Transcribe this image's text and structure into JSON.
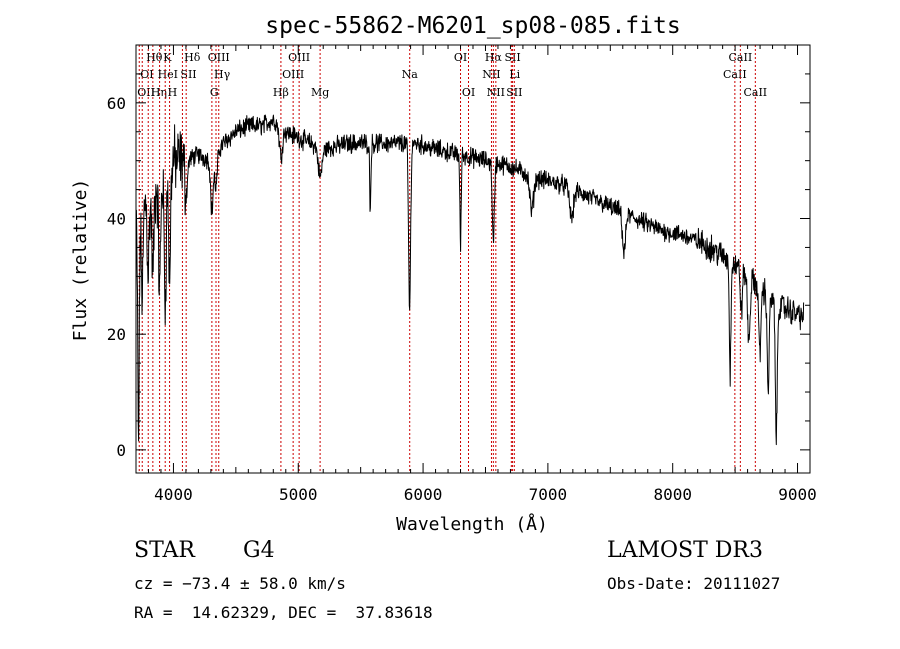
{
  "chart_data": {
    "type": "line",
    "title": "spec-55862-M6201_sp08-085.fits",
    "xlabel": "Wavelength (Å)",
    "ylabel": "Flux (relative)",
    "xlim": [
      3700,
      9100
    ],
    "ylim": [
      -4,
      70
    ],
    "xticks": [
      4000,
      5000,
      6000,
      7000,
      8000,
      9000
    ],
    "yticks": [
      0,
      20,
      40,
      60
    ],
    "line_color": "#000000",
    "marker_color": "#cc0000",
    "continuum": [
      {
        "x": 3700,
        "y": 38
      },
      {
        "x": 3760,
        "y": 43
      },
      {
        "x": 3830,
        "y": 44
      },
      {
        "x": 3900,
        "y": 46
      },
      {
        "x": 3980,
        "y": 50
      },
      {
        "x": 4100,
        "y": 50
      },
      {
        "x": 4200,
        "y": 51
      },
      {
        "x": 4300,
        "y": 50
      },
      {
        "x": 4400,
        "y": 53
      },
      {
        "x": 4500,
        "y": 55
      },
      {
        "x": 4600,
        "y": 56
      },
      {
        "x": 4700,
        "y": 56
      },
      {
        "x": 4800,
        "y": 57
      },
      {
        "x": 4900,
        "y": 55
      },
      {
        "x": 5000,
        "y": 54
      },
      {
        "x": 5100,
        "y": 53
      },
      {
        "x": 5200,
        "y": 52
      },
      {
        "x": 5400,
        "y": 53
      },
      {
        "x": 5600,
        "y": 53
      },
      {
        "x": 5800,
        "y": 53
      },
      {
        "x": 5950,
        "y": 53
      },
      {
        "x": 6100,
        "y": 52
      },
      {
        "x": 6300,
        "y": 51
      },
      {
        "x": 6500,
        "y": 50
      },
      {
        "x": 6700,
        "y": 49
      },
      {
        "x": 6900,
        "y": 47
      },
      {
        "x": 7100,
        "y": 46
      },
      {
        "x": 7300,
        "y": 44
      },
      {
        "x": 7500,
        "y": 42
      },
      {
        "x": 7700,
        "y": 40
      },
      {
        "x": 7900,
        "y": 38
      },
      {
        "x": 8100,
        "y": 37
      },
      {
        "x": 8300,
        "y": 35
      },
      {
        "x": 8500,
        "y": 32
      },
      {
        "x": 8700,
        "y": 28
      },
      {
        "x": 8850,
        "y": 25
      },
      {
        "x": 8950,
        "y": 24
      },
      {
        "x": 9050,
        "y": 23
      }
    ],
    "absorption_features": [
      {
        "x": 3720,
        "depth": 38,
        "width": 6
      },
      {
        "x": 3750,
        "depth": 15,
        "width": 8
      },
      {
        "x": 3798,
        "depth": 12,
        "width": 8
      },
      {
        "x": 3835,
        "depth": 14,
        "width": 8
      },
      {
        "x": 3889,
        "depth": 18,
        "width": 8
      },
      {
        "x": 3934,
        "depth": 22,
        "width": 8
      },
      {
        "x": 3969,
        "depth": 20,
        "width": 8
      },
      {
        "x": 4102,
        "depth": 6,
        "width": 10
      },
      {
        "x": 4308,
        "depth": 9,
        "width": 10
      },
      {
        "x": 4341,
        "depth": 6,
        "width": 10
      },
      {
        "x": 4861,
        "depth": 5,
        "width": 12
      },
      {
        "x": 5175,
        "depth": 5,
        "width": 15
      },
      {
        "x": 5577,
        "depth": 11,
        "width": 5
      },
      {
        "x": 5892,
        "depth": 29,
        "width": 8
      },
      {
        "x": 6300,
        "depth": 16,
        "width": 5
      },
      {
        "x": 6563,
        "depth": 14,
        "width": 8
      },
      {
        "x": 6870,
        "depth": 6,
        "width": 15
      },
      {
        "x": 7190,
        "depth": 5,
        "width": 15
      },
      {
        "x": 7610,
        "depth": 7,
        "width": 12
      },
      {
        "x": 8460,
        "depth": 20,
        "width": 6
      },
      {
        "x": 8550,
        "depth": 7,
        "width": 8
      },
      {
        "x": 8610,
        "depth": 11,
        "width": 10
      },
      {
        "x": 8698,
        "depth": 12,
        "width": 8
      },
      {
        "x": 8765,
        "depth": 16,
        "width": 8
      },
      {
        "x": 8830,
        "depth": 23,
        "width": 8
      }
    ],
    "noise_amplitude": {
      "blue": 9,
      "mid": 2.5,
      "red": 3.5
    },
    "line_markers": [
      {
        "x": 3726,
        "labels": [
          "OII"
        ],
        "row": 2,
        "align": "left"
      },
      {
        "x": 3750,
        "labels": [
          "OI"
        ],
        "row": 1,
        "align": "left"
      },
      {
        "x": 3798,
        "labels": [
          "Hθ"
        ],
        "row": 0,
        "align": "left"
      },
      {
        "x": 3835,
        "labels": [
          "Hη"
        ],
        "row": 2,
        "align": "left"
      },
      {
        "x": 3889,
        "labels": [
          "HeI"
        ],
        "row": 1,
        "align": "left"
      },
      {
        "x": 3934,
        "labels": [
          "K"
        ],
        "row": 0,
        "align": "left"
      },
      {
        "x": 3969,
        "labels": [
          "H"
        ],
        "row": 2,
        "align": "left"
      },
      {
        "x": 4072,
        "labels": [
          "SII"
        ],
        "row": 1,
        "align": "left"
      },
      {
        "x": 4102,
        "labels": [
          "Hδ"
        ],
        "row": 0,
        "align": "left"
      },
      {
        "x": 4308,
        "labels": [
          "G"
        ],
        "row": 2,
        "align": "left"
      },
      {
        "x": 4341,
        "labels": [
          "Hγ"
        ],
        "row": 1,
        "align": "left"
      },
      {
        "x": 4363,
        "labels": [
          "OIII"
        ],
        "row": 0,
        "align": "center"
      },
      {
        "x": 4861,
        "labels": [
          "Hβ"
        ],
        "row": 2,
        "align": "center"
      },
      {
        "x": 4959,
        "labels": [
          "OIII"
        ],
        "row": 1,
        "align": "center"
      },
      {
        "x": 5007,
        "labels": [
          "OIII"
        ],
        "row": 0,
        "align": "center"
      },
      {
        "x": 5175,
        "labels": [
          "Mg"
        ],
        "row": 2,
        "align": "center"
      },
      {
        "x": 5893,
        "labels": [
          "Na"
        ],
        "row": 1,
        "align": "center"
      },
      {
        "x": 6300,
        "labels": [
          "OI"
        ],
        "row": 0,
        "align": "center"
      },
      {
        "x": 6364,
        "labels": [
          "OI"
        ],
        "row": 2,
        "align": "center"
      },
      {
        "x": 6548,
        "labels": [
          "NII"
        ],
        "row": 1,
        "align": "center"
      },
      {
        "x": 6563,
        "labels": [
          "Hα"
        ],
        "row": 0,
        "align": "center"
      },
      {
        "x": 6583,
        "labels": [
          "NII"
        ],
        "row": 2,
        "align": "center"
      },
      {
        "x": 6707,
        "labels": [
          "Li"
        ],
        "row": 1,
        "align": "left"
      },
      {
        "x": 6717,
        "labels": [
          "SII"
        ],
        "row": 0,
        "align": "center"
      },
      {
        "x": 6731,
        "labels": [
          "SII"
        ],
        "row": 2,
        "align": "center"
      },
      {
        "x": 8498,
        "labels": [
          "CaII"
        ],
        "row": 1,
        "align": "center"
      },
      {
        "x": 8542,
        "labels": [
          "CaII"
        ],
        "row": 0,
        "align": "center"
      },
      {
        "x": 8662,
        "labels": [
          "CaII"
        ],
        "row": 2,
        "align": "center"
      }
    ]
  },
  "info": {
    "object_class": "STAR",
    "subclass": "G4",
    "survey": "LAMOST DR3",
    "redshift": "cz = −73.4 ± 58.0 km/s",
    "obs_date": "Obs-Date: 20111027",
    "coords": "RA =  14.62329, DEC =  37.83618"
  }
}
